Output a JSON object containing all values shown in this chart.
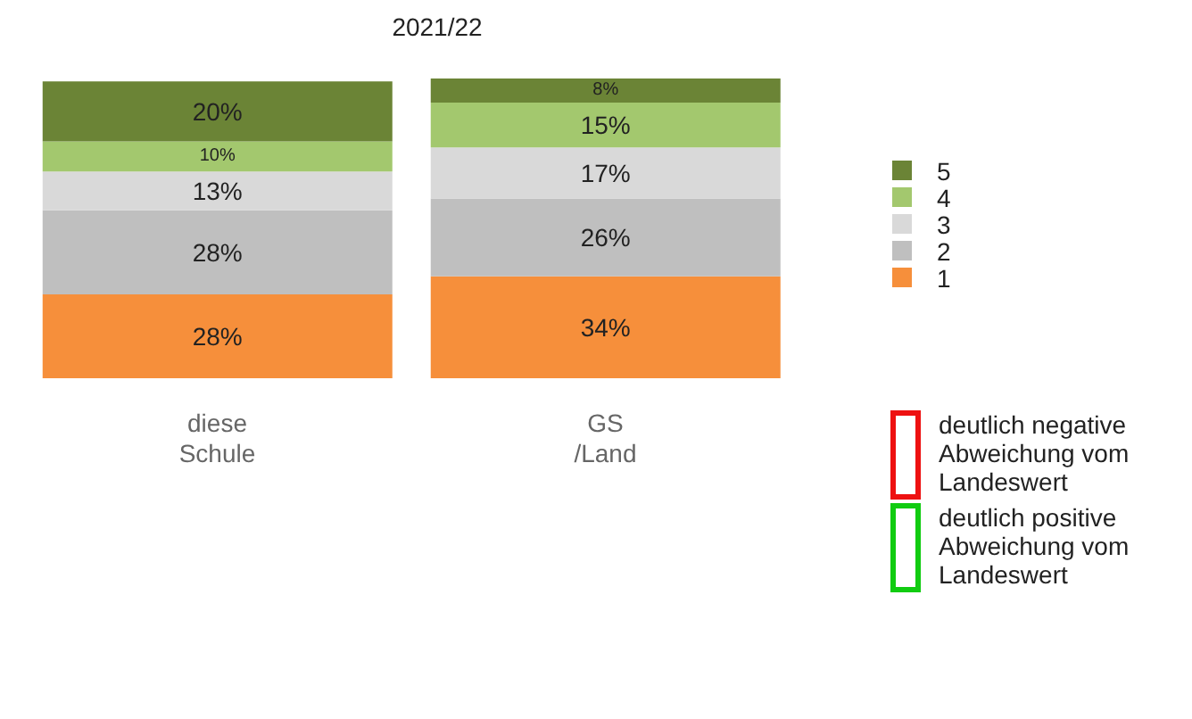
{
  "chart_data": {
    "type": "bar",
    "title": "2021/22",
    "categories": [
      "diese\nSchule",
      "GS\n/Land"
    ],
    "stacked": true,
    "legend": "right",
    "series": [
      {
        "name": "1",
        "color": "#f68f3b",
        "values": [
          28,
          34
        ],
        "value_labels": [
          "28%",
          "34%"
        ]
      },
      {
        "name": "2",
        "color": "#bfbfbf",
        "values": [
          28,
          26
        ],
        "value_labels": [
          "28%",
          "26%"
        ]
      },
      {
        "name": "3",
        "color": "#d9d9d9",
        "values": [
          13,
          17
        ],
        "value_labels": [
          "13%",
          "17%"
        ]
      },
      {
        "name": "4",
        "color": "#a3c86e",
        "values": [
          10,
          15
        ],
        "value_labels": [
          "10%",
          "15%"
        ]
      },
      {
        "name": "5",
        "color": "#6b8436",
        "values": [
          20,
          8
        ],
        "value_labels": [
          "20%",
          "8%"
        ]
      }
    ],
    "annotations": [
      "deutlich negative\nAbweichung vom\nLandeswert",
      "deutlich positive\nAbweichung vom\nLandeswert"
    ]
  }
}
